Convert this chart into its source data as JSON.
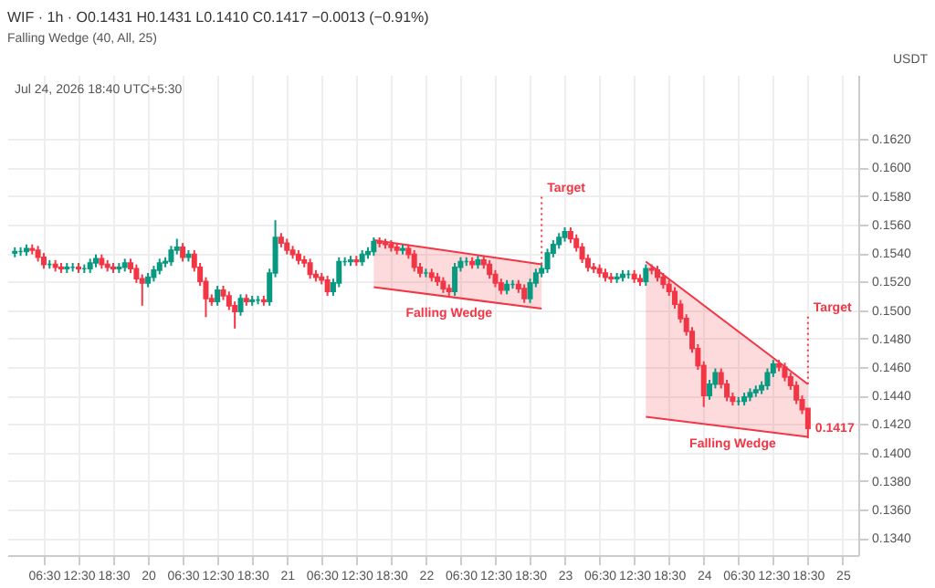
{
  "chart_data": {
    "type": "candlestick",
    "title": "WIF · 1h · O0.1431 H0.1431 L0.1410 C0.1417 −0.0013 (−0.91%)",
    "subtitle": "Falling Wedge (40, All, 25)",
    "ylabel": "USDT",
    "x": [
      "2026-07-19T01:30",
      "2026-07-19T02:30",
      "2026-07-19T03:30",
      "2026-07-19T04:30",
      "2026-07-19T05:30",
      "2026-07-19T06:30",
      "2026-07-19T07:30",
      "2026-07-19T08:30",
      "2026-07-19T09:30",
      "2026-07-19T10:30",
      "2026-07-19T11:30",
      "2026-07-19T12:30",
      "2026-07-19T13:30",
      "2026-07-19T14:30",
      "2026-07-19T15:30",
      "2026-07-19T16:30",
      "2026-07-19T17:30",
      "2026-07-19T18:30",
      "2026-07-19T19:30",
      "2026-07-19T20:30",
      "2026-07-19T21:30",
      "2026-07-19T22:30",
      "2026-07-19T23:30",
      "2026-07-20T00:30",
      "2026-07-20T01:30",
      "2026-07-20T02:30",
      "2026-07-20T03:30",
      "2026-07-20T04:30",
      "2026-07-20T05:30",
      "2026-07-20T06:30",
      "2026-07-20T07:30",
      "2026-07-20T08:30",
      "2026-07-20T09:30",
      "2026-07-20T10:30",
      "2026-07-20T11:30",
      "2026-07-20T12:30",
      "2026-07-20T13:30",
      "2026-07-20T14:30",
      "2026-07-20T15:30",
      "2026-07-20T16:30",
      "2026-07-20T17:30",
      "2026-07-20T18:30",
      "2026-07-20T19:30",
      "2026-07-20T20:30",
      "2026-07-20T21:30",
      "2026-07-20T22:30",
      "2026-07-20T23:30",
      "2026-07-21T00:30",
      "2026-07-21T01:30",
      "2026-07-21T02:30",
      "2026-07-21T03:30",
      "2026-07-21T04:30",
      "2026-07-21T05:30",
      "2026-07-21T06:30",
      "2026-07-21T07:30",
      "2026-07-21T08:30",
      "2026-07-21T09:30",
      "2026-07-21T10:30",
      "2026-07-21T11:30",
      "2026-07-21T12:30",
      "2026-07-21T13:30",
      "2026-07-21T14:30",
      "2026-07-21T15:30",
      "2026-07-21T16:30",
      "2026-07-21T17:30",
      "2026-07-21T18:30",
      "2026-07-21T19:30",
      "2026-07-21T20:30",
      "2026-07-21T21:30",
      "2026-07-21T22:30",
      "2026-07-21T23:30",
      "2026-07-22T00:30",
      "2026-07-22T01:30",
      "2026-07-22T02:30",
      "2026-07-22T03:30",
      "2026-07-22T04:30",
      "2026-07-22T05:30",
      "2026-07-22T06:30",
      "2026-07-22T07:30",
      "2026-07-22T08:30",
      "2026-07-22T09:30",
      "2026-07-22T10:30",
      "2026-07-22T11:30",
      "2026-07-22T12:30",
      "2026-07-22T13:30",
      "2026-07-22T14:30",
      "2026-07-22T15:30",
      "2026-07-22T16:30",
      "2026-07-22T17:30",
      "2026-07-22T18:30",
      "2026-07-22T19:30",
      "2026-07-22T20:30",
      "2026-07-22T21:30",
      "2026-07-22T22:30",
      "2026-07-22T23:30",
      "2026-07-23T00:30",
      "2026-07-23T01:30",
      "2026-07-23T02:30",
      "2026-07-23T03:30",
      "2026-07-23T04:30",
      "2026-07-23T05:30",
      "2026-07-23T06:30",
      "2026-07-23T07:30",
      "2026-07-23T08:30",
      "2026-07-23T09:30",
      "2026-07-23T10:30",
      "2026-07-23T11:30",
      "2026-07-23T12:30",
      "2026-07-23T13:30",
      "2026-07-23T14:30",
      "2026-07-23T15:30",
      "2026-07-23T16:30",
      "2026-07-23T17:30",
      "2026-07-23T18:30",
      "2026-07-23T19:30",
      "2026-07-23T20:30",
      "2026-07-23T21:30",
      "2026-07-23T22:30",
      "2026-07-23T23:30",
      "2026-07-24T00:30",
      "2026-07-24T01:30",
      "2026-07-24T02:30",
      "2026-07-24T03:30",
      "2026-07-24T04:30",
      "2026-07-24T05:30",
      "2026-07-24T06:30",
      "2026-07-24T07:30",
      "2026-07-24T08:30",
      "2026-07-24T09:30",
      "2026-07-24T10:30",
      "2026-07-24T11:30",
      "2026-07-24T12:30",
      "2026-07-24T13:30",
      "2026-07-24T14:30",
      "2026-07-24T15:30",
      "2026-07-24T16:30",
      "2026-07-24T17:30",
      "2026-07-24T18:30"
    ],
    "ohlc": [
      [
        0.154,
        0.1544,
        0.1537,
        0.1541
      ],
      [
        0.1541,
        0.1544,
        0.1538,
        0.1541
      ],
      [
        0.1541,
        0.1546,
        0.1538,
        0.1543
      ],
      [
        0.1543,
        0.1546,
        0.1539,
        0.1542
      ],
      [
        0.1542,
        0.1545,
        0.1534,
        0.1537
      ],
      [
        0.1537,
        0.154,
        0.1529,
        0.1532
      ],
      [
        0.1532,
        0.1535,
        0.1529,
        0.1532
      ],
      [
        0.1532,
        0.1535,
        0.1527,
        0.153
      ],
      [
        0.153,
        0.1533,
        0.1526,
        0.1529
      ],
      [
        0.1529,
        0.1533,
        0.1526,
        0.153
      ],
      [
        0.153,
        0.1533,
        0.1527,
        0.153
      ],
      [
        0.153,
        0.1533,
        0.1526,
        0.1529
      ],
      [
        0.1529,
        0.1532,
        0.1526,
        0.1529
      ],
      [
        0.1529,
        0.1536,
        0.1526,
        0.1533
      ],
      [
        0.1533,
        0.1539,
        0.153,
        0.1536
      ],
      [
        0.1536,
        0.1539,
        0.1529,
        0.1532
      ],
      [
        0.1532,
        0.1535,
        0.1527,
        0.153
      ],
      [
        0.153,
        0.1533,
        0.1526,
        0.1529
      ],
      [
        0.1529,
        0.1533,
        0.1526,
        0.153
      ],
      [
        0.153,
        0.1536,
        0.1527,
        0.1533
      ],
      [
        0.1533,
        0.1536,
        0.1526,
        0.1529
      ],
      [
        0.1529,
        0.1532,
        0.1519,
        0.1522
      ],
      [
        0.1522,
        0.1525,
        0.1503,
        0.1519
      ],
      [
        0.1519,
        0.1526,
        0.1516,
        0.1523
      ],
      [
        0.1523,
        0.1531,
        0.152,
        0.1528
      ],
      [
        0.1528,
        0.1536,
        0.1525,
        0.1533
      ],
      [
        0.1533,
        0.1537,
        0.153,
        0.1534
      ],
      [
        0.1534,
        0.1545,
        0.1531,
        0.1542
      ],
      [
        0.1542,
        0.155,
        0.1539,
        0.1544
      ],
      [
        0.1544,
        0.1547,
        0.1534,
        0.1537
      ],
      [
        0.1537,
        0.1542,
        0.1534,
        0.1539
      ],
      [
        0.1539,
        0.1542,
        0.1527,
        0.153
      ],
      [
        0.153,
        0.1533,
        0.1517,
        0.152
      ],
      [
        0.152,
        0.1523,
        0.1495,
        0.1508
      ],
      [
        0.1508,
        0.1511,
        0.1503,
        0.1506
      ],
      [
        0.1506,
        0.1517,
        0.1503,
        0.1514
      ],
      [
        0.1514,
        0.1517,
        0.1507,
        0.151
      ],
      [
        0.151,
        0.1513,
        0.15,
        0.1503
      ],
      [
        0.1503,
        0.1506,
        0.1487,
        0.1499
      ],
      [
        0.1499,
        0.1511,
        0.1496,
        0.1508
      ],
      [
        0.1508,
        0.1511,
        0.1503,
        0.1506
      ],
      [
        0.1506,
        0.151,
        0.1503,
        0.1507
      ],
      [
        0.1507,
        0.151,
        0.1504,
        0.1507
      ],
      [
        0.1507,
        0.151,
        0.1503,
        0.1506
      ],
      [
        0.1506,
        0.1529,
        0.1503,
        0.1526
      ],
      [
        0.1526,
        0.1563,
        0.1523,
        0.1551
      ],
      [
        0.1551,
        0.1554,
        0.1544,
        0.1547
      ],
      [
        0.1547,
        0.155,
        0.1539,
        0.1542
      ],
      [
        0.1542,
        0.1545,
        0.1536,
        0.1539
      ],
      [
        0.1539,
        0.1542,
        0.1532,
        0.1535
      ],
      [
        0.1535,
        0.1538,
        0.153,
        0.1533
      ],
      [
        0.1533,
        0.1536,
        0.1522,
        0.1525
      ],
      [
        0.1525,
        0.1528,
        0.152,
        0.1523
      ],
      [
        0.1523,
        0.1526,
        0.1518,
        0.1521
      ],
      [
        0.1521,
        0.1524,
        0.151,
        0.1513
      ],
      [
        0.1513,
        0.1522,
        0.151,
        0.1519
      ],
      [
        0.1519,
        0.1537,
        0.1516,
        0.1534
      ],
      [
        0.1534,
        0.1537,
        0.1531,
        0.1534
      ],
      [
        0.1534,
        0.1538,
        0.1531,
        0.1535
      ],
      [
        0.1535,
        0.1538,
        0.1531,
        0.1534
      ],
      [
        0.1534,
        0.1542,
        0.1531,
        0.1539
      ],
      [
        0.1539,
        0.1544,
        0.1536,
        0.1541
      ],
      [
        0.1541,
        0.1551,
        0.1538,
        0.1548
      ],
      [
        0.1548,
        0.1551,
        0.1544,
        0.1547
      ],
      [
        0.1547,
        0.155,
        0.1543,
        0.1546
      ],
      [
        0.1546,
        0.1549,
        0.1541,
        0.1544
      ],
      [
        0.1544,
        0.1547,
        0.1539,
        0.1542
      ],
      [
        0.1542,
        0.1546,
        0.1539,
        0.1543
      ],
      [
        0.1543,
        0.1546,
        0.1536,
        0.1539
      ],
      [
        0.1539,
        0.1542,
        0.1527,
        0.153
      ],
      [
        0.153,
        0.1533,
        0.1523,
        0.1526
      ],
      [
        0.1526,
        0.1529,
        0.1523,
        0.1526
      ],
      [
        0.1526,
        0.1529,
        0.152,
        0.1523
      ],
      [
        0.1523,
        0.1526,
        0.1517,
        0.152
      ],
      [
        0.152,
        0.1523,
        0.1512,
        0.1515
      ],
      [
        0.1515,
        0.1518,
        0.151,
        0.1513
      ],
      [
        0.1513,
        0.1533,
        0.151,
        0.153
      ],
      [
        0.153,
        0.1537,
        0.1527,
        0.1534
      ],
      [
        0.1534,
        0.1537,
        0.1531,
        0.1534
      ],
      [
        0.1534,
        0.1537,
        0.1529,
        0.1532
      ],
      [
        0.1532,
        0.1538,
        0.1529,
        0.1535
      ],
      [
        0.1535,
        0.1538,
        0.1529,
        0.1532
      ],
      [
        0.1532,
        0.1535,
        0.1522,
        0.1525
      ],
      [
        0.1525,
        0.1528,
        0.1516,
        0.1519
      ],
      [
        0.1519,
        0.1522,
        0.1511,
        0.1514
      ],
      [
        0.1514,
        0.1521,
        0.1511,
        0.1518
      ],
      [
        0.1518,
        0.1521,
        0.1515,
        0.1518
      ],
      [
        0.1518,
        0.1521,
        0.1512,
        0.1515
      ],
      [
        0.1515,
        0.1518,
        0.1505,
        0.1508
      ],
      [
        0.1508,
        0.1522,
        0.1505,
        0.1519
      ],
      [
        0.1519,
        0.1529,
        0.1516,
        0.1526
      ],
      [
        0.1526,
        0.1532,
        0.1523,
        0.1529
      ],
      [
        0.1529,
        0.1543,
        0.1526,
        0.154
      ],
      [
        0.154,
        0.1549,
        0.1537,
        0.1546
      ],
      [
        0.1546,
        0.1554,
        0.1543,
        0.1551
      ],
      [
        0.1551,
        0.1558,
        0.1548,
        0.1555
      ],
      [
        0.1555,
        0.1558,
        0.1547,
        0.155
      ],
      [
        0.155,
        0.1553,
        0.1541,
        0.1544
      ],
      [
        0.1544,
        0.1547,
        0.1533,
        0.1536
      ],
      [
        0.1536,
        0.1539,
        0.1527,
        0.153
      ],
      [
        0.153,
        0.1533,
        0.1526,
        0.1529
      ],
      [
        0.1529,
        0.1532,
        0.1523,
        0.1526
      ],
      [
        0.1526,
        0.1529,
        0.152,
        0.1523
      ],
      [
        0.1523,
        0.1526,
        0.1519,
        0.1522
      ],
      [
        0.1522,
        0.1526,
        0.1519,
        0.1523
      ],
      [
        0.1523,
        0.1528,
        0.152,
        0.1525
      ],
      [
        0.1525,
        0.1528,
        0.1522,
        0.1525
      ],
      [
        0.1525,
        0.1528,
        0.1519,
        0.1522
      ],
      [
        0.1522,
        0.1525,
        0.1517,
        0.152
      ],
      [
        0.152,
        0.1532,
        0.1517,
        0.1529
      ],
      [
        0.1529,
        0.1532,
        0.1525,
        0.1528
      ],
      [
        0.1528,
        0.1531,
        0.152,
        0.1523
      ],
      [
        0.1523,
        0.1526,
        0.1515,
        0.1518
      ],
      [
        0.1518,
        0.1521,
        0.151,
        0.1513
      ],
      [
        0.1513,
        0.1516,
        0.1501,
        0.1504
      ],
      [
        0.1504,
        0.1507,
        0.1491,
        0.1494
      ],
      [
        0.1494,
        0.1497,
        0.1482,
        0.1485
      ],
      [
        0.1485,
        0.1488,
        0.147,
        0.1473
      ],
      [
        0.1473,
        0.1476,
        0.1458,
        0.1461
      ],
      [
        0.1461,
        0.1464,
        0.1432,
        0.144
      ],
      [
        0.144,
        0.1451,
        0.1437,
        0.1448
      ],
      [
        0.1448,
        0.1459,
        0.1445,
        0.1456
      ],
      [
        0.1456,
        0.1459,
        0.1445,
        0.1448
      ],
      [
        0.1448,
        0.1451,
        0.1436,
        0.1439
      ],
      [
        0.1439,
        0.1442,
        0.1433,
        0.1436
      ],
      [
        0.1436,
        0.1439,
        0.1433,
        0.1436
      ],
      [
        0.1436,
        0.1442,
        0.1433,
        0.1439
      ],
      [
        0.1439,
        0.1445,
        0.1436,
        0.1442
      ],
      [
        0.1442,
        0.1447,
        0.1439,
        0.1444
      ],
      [
        0.1444,
        0.145,
        0.1441,
        0.1447
      ],
      [
        0.1447,
        0.1459,
        0.1444,
        0.1456
      ],
      [
        0.1456,
        0.1465,
        0.1453,
        0.1462
      ],
      [
        0.1462,
        0.1465,
        0.1457,
        0.146
      ],
      [
        0.146,
        0.1463,
        0.145,
        0.1453
      ],
      [
        0.1453,
        0.1456,
        0.1444,
        0.1447
      ],
      [
        0.1447,
        0.145,
        0.1434,
        0.1437
      ],
      [
        0.1437,
        0.144,
        0.1427,
        0.143
      ],
      [
        0.1431,
        0.1431,
        0.141,
        0.1417
      ]
    ],
    "colors": [
      "#089981",
      "#089981",
      "#089981",
      "#f23645",
      "#f23645",
      "#f23645",
      "#089981",
      "#f23645",
      "#f23645",
      "#089981",
      "#089981",
      "#f23645",
      "#089981",
      "#089981",
      "#089981",
      "#f23645",
      "#f23645",
      "#f23645",
      "#089981",
      "#089981",
      "#f23645",
      "#f23645",
      "#f23645",
      "#089981",
      "#089981",
      "#089981",
      "#089981",
      "#089981",
      "#089981",
      "#f23645",
      "#089981",
      "#f23645",
      "#f23645",
      "#f23645",
      "#f23645",
      "#089981",
      "#f23645",
      "#f23645",
      "#f23645",
      "#089981",
      "#f23645",
      "#089981",
      "#089981",
      "#f23645",
      "#089981",
      "#089981",
      "#f23645",
      "#f23645",
      "#f23645",
      "#f23645",
      "#f23645",
      "#f23645",
      "#f23645",
      "#f23645",
      "#f23645",
      "#089981",
      "#089981",
      "#089981",
      "#089981",
      "#f23645",
      "#089981",
      "#089981",
      "#089981",
      "#f23645",
      "#f23645",
      "#f23645",
      "#f23645",
      "#089981",
      "#f23645",
      "#f23645",
      "#f23645",
      "#089981",
      "#f23645",
      "#f23645",
      "#f23645",
      "#f23645",
      "#089981",
      "#089981",
      "#089981",
      "#f23645",
      "#089981",
      "#f23645",
      "#f23645",
      "#f23645",
      "#f23645",
      "#089981",
      "#089981",
      "#f23645",
      "#f23645",
      "#089981",
      "#089981",
      "#089981",
      "#089981",
      "#089981",
      "#089981",
      "#089981",
      "#f23645",
      "#f23645",
      "#f23645",
      "#f23645",
      "#f23645",
      "#f23645",
      "#f23645",
      "#f23645",
      "#089981",
      "#089981",
      "#089981",
      "#f23645",
      "#f23645",
      "#089981",
      "#f23645",
      "#f23645",
      "#f23645",
      "#f23645",
      "#f23645",
      "#f23645",
      "#f23645",
      "#f23645",
      "#f23645",
      "#f23645",
      "#089981",
      "#089981",
      "#f23645",
      "#f23645",
      "#f23645",
      "#089981",
      "#089981",
      "#089981",
      "#089981",
      "#089981",
      "#089981",
      "#089981",
      "#f23645",
      "#f23645",
      "#f23645",
      "#f23645",
      "#f23645",
      "#f23645"
    ],
    "series": [
      {
        "type": "line",
        "color": "#f23645",
        "x": [
          "2026-07-21T15:30",
          "2026-07-22T20:30"
        ],
        "values": [
          0.1549,
          0.1532
        ],
        "lower": [
          0.1516,
          0.1501
        ],
        "upper": [
          0.1549,
          0.1532
        ]
      },
      {
        "type": "line",
        "color": "#f23645",
        "x": [
          "2026-07-21T15:30",
          "2026-07-22T20:30"
        ],
        "values": [
          0.1516,
          0.1501
        ]
      },
      {
        "type": "line",
        "color": "#f23645",
        "x": [
          "2026-07-23T14:30",
          "2026-07-24T18:30"
        ],
        "values": [
          0.1534,
          0.1448
        ],
        "lower": [
          0.1425,
          0.1411
        ],
        "upper": [
          0.1534,
          0.1448
        ]
      },
      {
        "type": "line",
        "color": "#f23645",
        "x": [
          "2026-07-23T14:30",
          "2026-07-24T18:30"
        ],
        "values": [
          0.1425,
          0.1411
        ]
      }
    ],
    "annotations": [
      {
        "text": "Falling Wedge",
        "x": "2026-07-22T04:30",
        "y": 0.1509
      },
      {
        "text": "Falling Wedge",
        "x": "2026-07-24T05:30",
        "y": 0.1418
      },
      {
        "text": "Target",
        "x": "2026-07-22T20:30",
        "y": 0.1532
      },
      {
        "text": "Target",
        "x": "2026-07-24T18:30",
        "y": 0.1448
      },
      {
        "text": "0.1417",
        "x": "2026-07-24T18:30",
        "y": 0.1417
      },
      "Jul 24, 2026 18:40 UTC+5:30"
    ],
    "xlim": [
      "2026-07-19T00:12",
      "2026-07-25T03:12"
    ],
    "xticks": [
      {
        "value": "2026-07-19T06:30",
        "label": "06:30"
      },
      {
        "value": "2026-07-19T12:30",
        "label": "12:30"
      },
      {
        "value": "2026-07-19T18:30",
        "label": "18:30"
      },
      {
        "value": "2026-07-20T00:30",
        "label": "20"
      },
      {
        "value": "2026-07-20T06:30",
        "label": "06:30"
      },
      {
        "value": "2026-07-20T12:30",
        "label": "12:30"
      },
      {
        "value": "2026-07-20T18:30",
        "label": "18:30"
      },
      {
        "value": "2026-07-21T00:30",
        "label": "21"
      },
      {
        "value": "2026-07-21T06:30",
        "label": "06:30"
      },
      {
        "value": "2026-07-21T12:30",
        "label": "12:30"
      },
      {
        "value": "2026-07-21T18:30",
        "label": "18:30"
      },
      {
        "value": "2026-07-22T00:30",
        "label": "22"
      },
      {
        "value": "2026-07-22T06:30",
        "label": "06:30"
      },
      {
        "value": "2026-07-22T12:30",
        "label": "12:30"
      },
      {
        "value": "2026-07-22T18:30",
        "label": "18:30"
      },
      {
        "value": "2026-07-23T00:30",
        "label": "23"
      },
      {
        "value": "2026-07-23T06:30",
        "label": "06:30"
      },
      {
        "value": "2026-07-23T12:30",
        "label": "12:30"
      },
      {
        "value": "2026-07-23T18:30",
        "label": "18:30"
      },
      {
        "value": "2026-07-24T00:30",
        "label": "24"
      },
      {
        "value": "2026-07-24T06:30",
        "label": "06:30"
      },
      {
        "value": "2026-07-24T12:30",
        "label": "12:30"
      },
      {
        "value": "2026-07-24T18:30",
        "label": "18:30"
      },
      {
        "value": "2026-07-25T00:30",
        "label": "25"
      }
    ],
    "ylim": [
      0.1328,
      0.1665
    ],
    "yticks": [
      {
        "value": 0.162,
        "label": "0.1620"
      },
      {
        "value": 0.16,
        "label": "0.1600"
      },
      {
        "value": 0.158,
        "label": "0.1580"
      },
      {
        "value": 0.156,
        "label": "0.1560"
      },
      {
        "value": 0.154,
        "label": "0.1540"
      },
      {
        "value": 0.152,
        "label": "0.1520"
      },
      {
        "value": 0.15,
        "label": "0.1500"
      },
      {
        "value": 0.148,
        "label": "0.1480"
      },
      {
        "value": 0.146,
        "label": "0.1460"
      },
      {
        "value": 0.144,
        "label": "0.1440"
      },
      {
        "value": 0.142,
        "label": "0.1420"
      },
      {
        "value": 0.14,
        "label": "0.1400"
      },
      {
        "value": 0.138,
        "label": "0.1380"
      },
      {
        "value": 0.136,
        "label": "0.1360"
      },
      {
        "value": 0.134,
        "label": "0.1340"
      }
    ],
    "grid": true
  }
}
